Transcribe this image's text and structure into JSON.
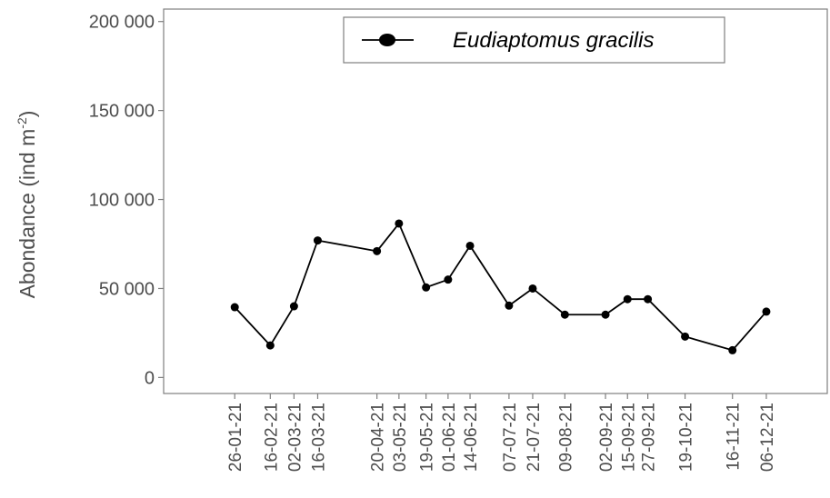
{
  "chart_data": {
    "type": "line",
    "y_label_parts": [
      "Abondance (ind m",
      "-2",
      ")"
    ],
    "x": [
      "26-01-21",
      "16-02-21",
      "02-03-21",
      "16-03-21",
      "20-04-21",
      "03-05-21",
      "19-05-21",
      "01-06-21",
      "14-06-21",
      "07-07-21",
      "21-07-21",
      "09-08-21",
      "02-09-21",
      "15-09-21",
      "27-09-21",
      "19-10-21",
      "16-11-21",
      "06-12-21"
    ],
    "xlim": [
      "15-12-20",
      "11-01-22"
    ],
    "series": [
      {
        "name": "Eudiaptomus gracilis",
        "color": "#000000",
        "values": [
          39500,
          18000,
          40000,
          77000,
          71000,
          86500,
          50600,
          55000,
          74000,
          40400,
          50000,
          35300,
          35300,
          44000,
          44000,
          23000,
          15300,
          37000
        ]
      }
    ],
    "ylim": [
      -9000,
      207000
    ],
    "yticks": [
      {
        "value": 0,
        "label": "0"
      },
      {
        "value": 50000,
        "label": "50 000"
      },
      {
        "value": 100000,
        "label": "100 000"
      },
      {
        "value": 150000,
        "label": "150 000"
      },
      {
        "value": 200000,
        "label": "200 000"
      }
    ],
    "legend": "top"
  }
}
